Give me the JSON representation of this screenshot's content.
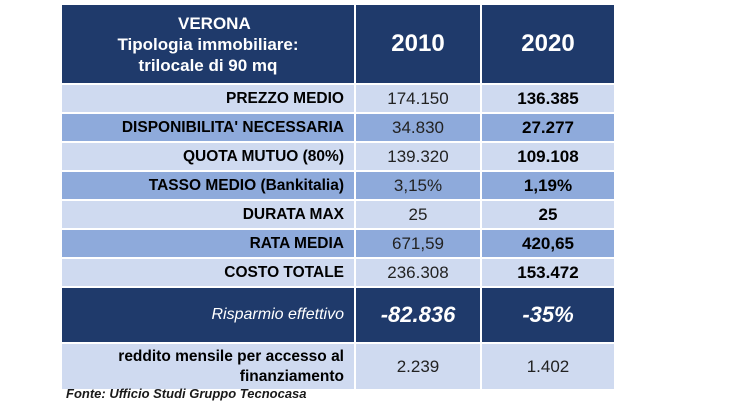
{
  "header": {
    "city": "VERONA",
    "type_line1": "Tipologia immobiliare:",
    "type_line2": "trilocale di 90 mq",
    "year1": "2010",
    "year2": "2020"
  },
  "rows": [
    {
      "label": "PREZZO MEDIO",
      "v2010": "174.150",
      "v2020": "136.385"
    },
    {
      "label": "DISPONIBILITA' NECESSARIA",
      "v2010": "34.830",
      "v2020": "27.277"
    },
    {
      "label": "QUOTA MUTUO (80%)",
      "v2010": "139.320",
      "v2020": "109.108"
    },
    {
      "label": "TASSO MEDIO (Bankitalia)",
      "v2010": "3,15%",
      "v2020": "1,19%"
    },
    {
      "label": "DURATA MAX",
      "v2010": "25",
      "v2020": "25"
    },
    {
      "label": "RATA MEDIA",
      "v2010": "671,59",
      "v2020": "420,65"
    },
    {
      "label": "COSTO TOTALE",
      "v2010": "236.308",
      "v2020": "153.472"
    }
  ],
  "risparmio": {
    "label": "Risparmio effettivo",
    "v2010": "-82.836",
    "v2020": "-35%"
  },
  "reddito": {
    "label": "reddito mensile per accesso al finanziamento",
    "v2010": "2.239",
    "v2020": "1.402"
  },
  "source": "Fonte: Ufficio Studi Gruppo Tecnocasa",
  "colors": {
    "header_bg": "#1f3a6b",
    "row_light": "#cfdaf0",
    "row_mid": "#8eaadb"
  }
}
